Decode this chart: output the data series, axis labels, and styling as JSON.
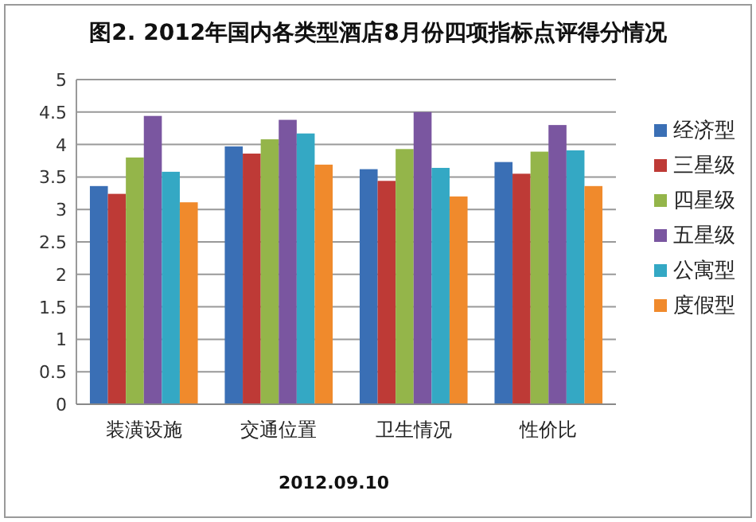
{
  "chart_data": {
    "type": "bar",
    "title": "图2. 2012年国内各类型酒店8月份四项指标点评得分情况",
    "categories": [
      "装潢设施",
      "交通位置",
      "卫生情况",
      "性价比"
    ],
    "series": [
      {
        "name": "经济型",
        "color": "#3a6fb5",
        "values": [
          3.36,
          3.97,
          3.62,
          3.73
        ]
      },
      {
        "name": "三星级",
        "color": "#be3a36",
        "values": [
          3.24,
          3.86,
          3.44,
          3.55
        ]
      },
      {
        "name": "四星级",
        "color": "#94b54a",
        "values": [
          3.8,
          4.08,
          3.93,
          3.89
        ]
      },
      {
        "name": "五星级",
        "color": "#7a56a0",
        "values": [
          4.44,
          4.38,
          4.5,
          4.3
        ]
      },
      {
        "name": "公寓型",
        "color": "#34a8c4",
        "values": [
          3.58,
          4.17,
          3.64,
          3.91
        ]
      },
      {
        "name": "度假型",
        "color": "#f08a2c",
        "values": [
          3.11,
          3.69,
          3.2,
          3.36
        ]
      }
    ],
    "ylim": [
      0,
      5
    ],
    "yticks": [
      0,
      0.5,
      1,
      1.5,
      2,
      2.5,
      3,
      3.5,
      4,
      4.5,
      5
    ],
    "grid": "y",
    "legend": "right",
    "annotations": [
      "2012.09.10"
    ]
  }
}
